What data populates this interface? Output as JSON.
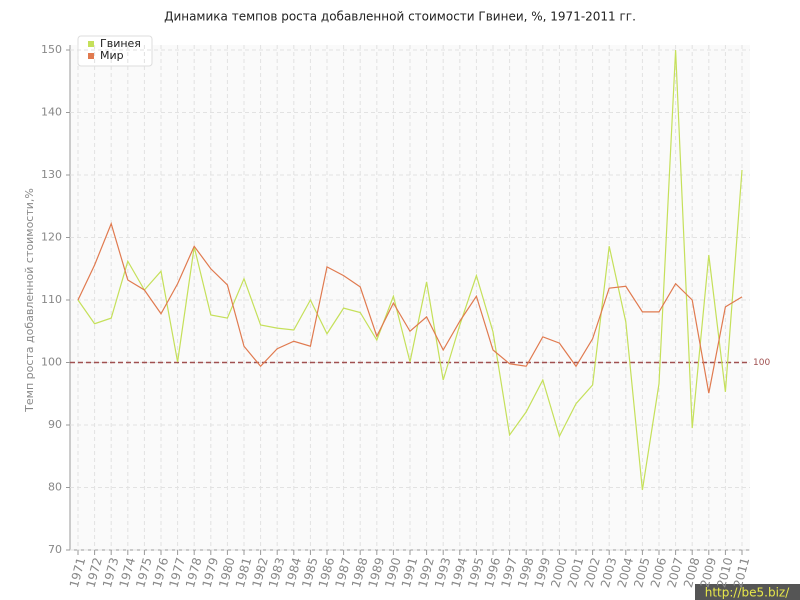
{
  "chart_data": {
    "type": "line",
    "title": "Динамика темпов роста добавленной стоимости Гвинеи, %, 1971-2011 гг.",
    "y_label": "Темп роста добавленной стоимости,%",
    "categories": [
      "1971",
      "1972",
      "1973",
      "1974",
      "1975",
      "1976",
      "1977",
      "1978",
      "1979",
      "1980",
      "1981",
      "1982",
      "1983",
      "1984",
      "1985",
      "1986",
      "1987",
      "1988",
      "1989",
      "1990",
      "1991",
      "1992",
      "1993",
      "1994",
      "1995",
      "1996",
      "1997",
      "1998",
      "1999",
      "2000",
      "2001",
      "2002",
      "2003",
      "2004",
      "2005",
      "2006",
      "2007",
      "2008",
      "2009",
      "2010",
      "2011"
    ],
    "series": [
      {
        "name": "Гвинея",
        "color": "#c5e05a",
        "values": [
          110,
          106.2,
          107.1,
          116.2,
          111.6,
          114.6,
          100.1,
          118.5,
          107.6,
          107.1,
          113.4,
          106,
          105.5,
          105.2,
          110,
          104.6,
          108.7,
          108,
          103.6,
          110.6,
          100.1,
          112.9,
          97.2,
          106,
          113.9,
          104.9,
          88.4,
          92.1,
          97.2,
          88.2,
          93.4,
          96.4,
          118.6,
          106.5,
          79.6,
          96.6,
          150,
          89.5,
          117.2,
          95.3,
          130.8
        ]
      },
      {
        "name": "Мир",
        "color": "#e07a4f",
        "values": [
          110,
          115.6,
          122.2,
          113.2,
          111.6,
          107.8,
          112.6,
          118.6,
          115,
          112.4,
          102.6,
          99.4,
          102.2,
          103.4,
          102.6,
          115.3,
          113.9,
          112.1,
          104.2,
          109.5,
          105,
          107.3,
          102,
          106.6,
          110.6,
          102,
          99.8,
          99.4,
          104.1,
          103.1,
          99.4,
          103.8,
          111.9,
          112.2,
          108.1,
          108.1,
          112.6,
          110,
          95.1,
          108.9,
          110.5
        ]
      }
    ],
    "ylim": [
      70,
      150
    ],
    "yticks": [
      70,
      80,
      90,
      100,
      110,
      120,
      130,
      140,
      150
    ],
    "ref_line": 100,
    "ref_color": "#a05050",
    "grid": true,
    "legend": "top-left",
    "watermark": "http://be5.biz/"
  }
}
